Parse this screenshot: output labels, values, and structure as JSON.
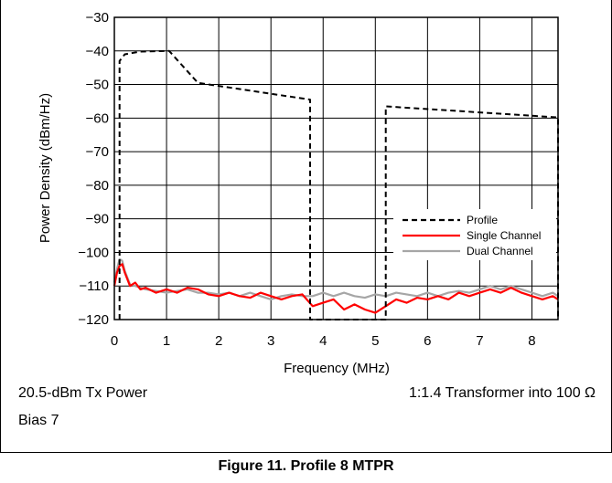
{
  "chart_data": {
    "type": "line",
    "xlabel": "Frequency (MHz)",
    "ylabel": "Power Density (dBm/Hz)",
    "xlim": [
      0,
      8.5
    ],
    "ylim": [
      -120,
      -30
    ],
    "xticks": [
      "0",
      "1",
      "2",
      "3",
      "4",
      "5",
      "6",
      "7",
      "8"
    ],
    "yticks": [
      "−120",
      "−110",
      "−100",
      "−90",
      "−80",
      "−70",
      "−60",
      "−50",
      "−40",
      "−30"
    ],
    "grid": true,
    "legend_position": "lower-right",
    "series": [
      {
        "name": "Profile",
        "color": "#000000",
        "style": "dashed",
        "points": [
          [
            0.1,
            -120
          ],
          [
            0.1,
            -43
          ],
          [
            0.2,
            -41
          ],
          [
            0.5,
            -40.2
          ],
          [
            1.0,
            -40
          ],
          [
            1.05,
            -40
          ],
          [
            1.6,
            -49.5
          ],
          [
            3.75,
            -54.5
          ],
          [
            3.75,
            -120
          ],
          [
            5.2,
            -120
          ],
          [
            5.2,
            -56.5
          ],
          [
            8.5,
            -59.8
          ],
          [
            8.5,
            -120
          ]
        ]
      },
      {
        "name": "Single Channel",
        "color": "#ff0000",
        "style": "solid",
        "points": [
          [
            0.0,
            -110
          ],
          [
            0.05,
            -106
          ],
          [
            0.1,
            -104
          ],
          [
            0.15,
            -103.5
          ],
          [
            0.2,
            -106
          ],
          [
            0.3,
            -110
          ],
          [
            0.4,
            -109
          ],
          [
            0.5,
            -111
          ],
          [
            0.6,
            -110.5
          ],
          [
            0.8,
            -112
          ],
          [
            1.0,
            -111
          ],
          [
            1.2,
            -112
          ],
          [
            1.4,
            -110.5
          ],
          [
            1.6,
            -111
          ],
          [
            1.8,
            -112.5
          ],
          [
            2.0,
            -113
          ],
          [
            2.2,
            -112
          ],
          [
            2.4,
            -113
          ],
          [
            2.6,
            -113.5
          ],
          [
            2.8,
            -112
          ],
          [
            3.0,
            -113
          ],
          [
            3.2,
            -114
          ],
          [
            3.4,
            -113
          ],
          [
            3.6,
            -112.5
          ],
          [
            3.8,
            -116
          ],
          [
            4.0,
            -115
          ],
          [
            4.2,
            -114
          ],
          [
            4.4,
            -117
          ],
          [
            4.6,
            -115.5
          ],
          [
            4.8,
            -117
          ],
          [
            5.0,
            -118
          ],
          [
            5.2,
            -116
          ],
          [
            5.4,
            -114
          ],
          [
            5.6,
            -115
          ],
          [
            5.8,
            -113.5
          ],
          [
            6.0,
            -114
          ],
          [
            6.2,
            -113
          ],
          [
            6.4,
            -114
          ],
          [
            6.6,
            -112
          ],
          [
            6.8,
            -113
          ],
          [
            7.0,
            -112
          ],
          [
            7.2,
            -111
          ],
          [
            7.4,
            -112
          ],
          [
            7.6,
            -110.5
          ],
          [
            7.8,
            -112
          ],
          [
            8.0,
            -113
          ],
          [
            8.2,
            -114
          ],
          [
            8.4,
            -113
          ],
          [
            8.5,
            -114
          ]
        ]
      },
      {
        "name": "Dual Channel",
        "color": "#a6a6a6",
        "style": "solid",
        "points": [
          [
            0.0,
            -109
          ],
          [
            0.05,
            -105
          ],
          [
            0.1,
            -102
          ],
          [
            0.15,
            -102.5
          ],
          [
            0.2,
            -105.5
          ],
          [
            0.3,
            -109.5
          ],
          [
            0.4,
            -110
          ],
          [
            0.5,
            -110.5
          ],
          [
            0.6,
            -111
          ],
          [
            0.8,
            -111.5
          ],
          [
            1.0,
            -112
          ],
          [
            1.2,
            -111.5
          ],
          [
            1.4,
            -111
          ],
          [
            1.6,
            -112
          ],
          [
            1.8,
            -112
          ],
          [
            2.0,
            -112.5
          ],
          [
            2.2,
            -112
          ],
          [
            2.4,
            -113
          ],
          [
            2.6,
            -112
          ],
          [
            2.8,
            -113
          ],
          [
            3.0,
            -114
          ],
          [
            3.2,
            -113
          ],
          [
            3.4,
            -112.5
          ],
          [
            3.6,
            -113
          ],
          [
            3.8,
            -113
          ],
          [
            4.0,
            -112
          ],
          [
            4.2,
            -113
          ],
          [
            4.4,
            -112
          ],
          [
            4.6,
            -113
          ],
          [
            4.8,
            -113.5
          ],
          [
            5.0,
            -112.5
          ],
          [
            5.2,
            -113
          ],
          [
            5.4,
            -112
          ],
          [
            5.6,
            -112.5
          ],
          [
            5.8,
            -113
          ],
          [
            6.0,
            -112
          ],
          [
            6.2,
            -113
          ],
          [
            6.4,
            -112
          ],
          [
            6.6,
            -111.5
          ],
          [
            6.8,
            -112
          ],
          [
            7.0,
            -111
          ],
          [
            7.2,
            -110
          ],
          [
            7.4,
            -111
          ],
          [
            7.6,
            -110
          ],
          [
            7.8,
            -111
          ],
          [
            8.0,
            -112
          ],
          [
            8.2,
            -113
          ],
          [
            8.4,
            -112
          ],
          [
            8.5,
            -113
          ]
        ]
      }
    ]
  },
  "notes": {
    "tx_power": "20.5-dBm Tx Power",
    "bias": "Bias 7",
    "transformer": "1:1.4 Transformer into 100 Ω"
  },
  "caption": "Figure 11. Profile 8 MTPR"
}
